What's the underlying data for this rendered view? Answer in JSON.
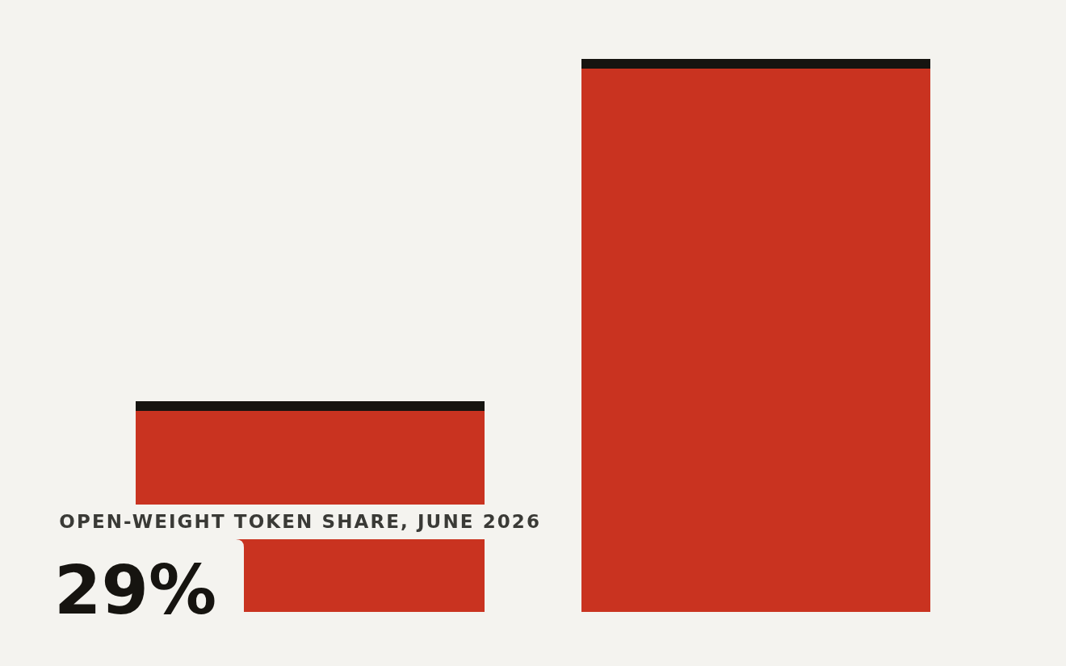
{
  "chart_data": {
    "type": "bar",
    "title": "OPEN-WEIGHT TOKEN SHARE, JUNE 2026",
    "categories": [
      null,
      null
    ],
    "values": [
      29,
      76
    ],
    "value_labels": [
      "29%",
      null
    ],
    "color": "#c93320"
  }
}
